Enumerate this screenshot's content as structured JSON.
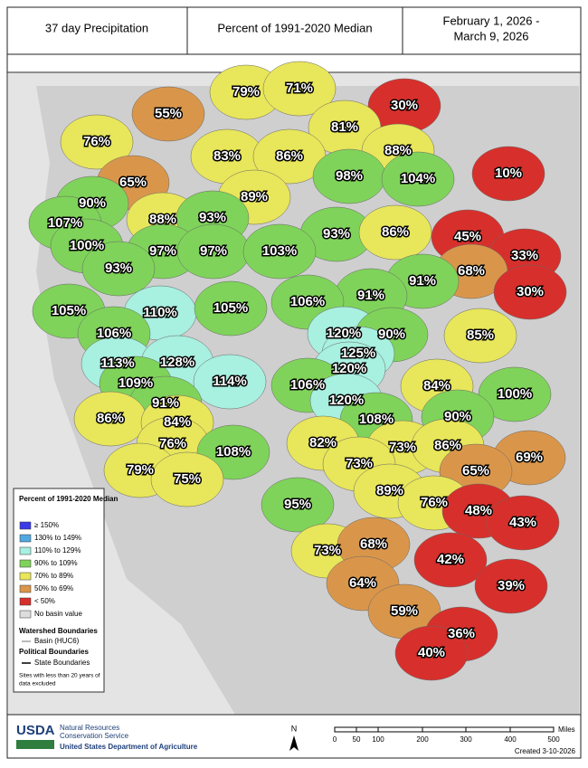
{
  "header": {
    "title": "37 day Precipitation",
    "subtitle": "Percent of 1991-2020 Median",
    "date_lines": [
      "February 1, 2026 -",
      "March 9, 2026"
    ]
  },
  "basins": [
    {
      "label": "30%",
      "color": "#d7302c"
    },
    {
      "label": "79%",
      "color": "#e8e65a"
    },
    {
      "label": "71%",
      "color": "#e8e65a"
    },
    {
      "label": "55%",
      "color": "#d9964b"
    },
    {
      "label": "81%",
      "color": "#e8e65a"
    },
    {
      "label": "76%",
      "color": "#e8e65a"
    },
    {
      "label": "88%",
      "color": "#e8e65a"
    },
    {
      "label": "83%",
      "color": "#e8e65a"
    },
    {
      "label": "86%",
      "color": "#e8e65a"
    },
    {
      "label": "10%",
      "color": "#d7302c"
    },
    {
      "label": "98%",
      "color": "#7fd35a"
    },
    {
      "label": "104%",
      "color": "#7fd35a"
    },
    {
      "label": "65%",
      "color": "#d9964b"
    },
    {
      "label": "90%",
      "color": "#7fd35a"
    },
    {
      "label": "89%",
      "color": "#e8e65a"
    },
    {
      "label": "107%",
      "color": "#7fd35a"
    },
    {
      "label": "88%",
      "color": "#e8e65a"
    },
    {
      "label": "93%",
      "color": "#7fd35a"
    },
    {
      "label": "93%",
      "color": "#7fd35a"
    },
    {
      "label": "86%",
      "color": "#e8e65a"
    },
    {
      "label": "45%",
      "color": "#d7302c"
    },
    {
      "label": "33%",
      "color": "#d7302c"
    },
    {
      "label": "100%",
      "color": "#7fd35a"
    },
    {
      "label": "97%",
      "color": "#7fd35a"
    },
    {
      "label": "97%",
      "color": "#7fd35a"
    },
    {
      "label": "103%",
      "color": "#7fd35a"
    },
    {
      "label": "68%",
      "color": "#d9964b"
    },
    {
      "label": "93%",
      "color": "#7fd35a"
    },
    {
      "label": "91%",
      "color": "#7fd35a"
    },
    {
      "label": "30%",
      "color": "#d7302c"
    },
    {
      "label": "91%",
      "color": "#7fd35a"
    },
    {
      "label": "106%",
      "color": "#7fd35a"
    },
    {
      "label": "105%",
      "color": "#7fd35a"
    },
    {
      "label": "110%",
      "color": "#a8f0e0"
    },
    {
      "label": "105%",
      "color": "#7fd35a"
    },
    {
      "label": "106%",
      "color": "#7fd35a"
    },
    {
      "label": "120%",
      "color": "#a8f0e0"
    },
    {
      "label": "90%",
      "color": "#7fd35a"
    },
    {
      "label": "85%",
      "color": "#e8e65a"
    },
    {
      "label": "125%",
      "color": "#a8f0e0"
    },
    {
      "label": "113%",
      "color": "#a8f0e0"
    },
    {
      "label": "128%",
      "color": "#a8f0e0"
    },
    {
      "label": "120%",
      "color": "#a8f0e0"
    },
    {
      "label": "109%",
      "color": "#7fd35a"
    },
    {
      "label": "114%",
      "color": "#a8f0e0"
    },
    {
      "label": "106%",
      "color": "#7fd35a"
    },
    {
      "label": "84%",
      "color": "#e8e65a"
    },
    {
      "label": "100%",
      "color": "#7fd35a"
    },
    {
      "label": "91%",
      "color": "#7fd35a"
    },
    {
      "label": "120%",
      "color": "#a8f0e0"
    },
    {
      "label": "86%",
      "color": "#e8e65a"
    },
    {
      "label": "84%",
      "color": "#e8e65a"
    },
    {
      "label": "108%",
      "color": "#7fd35a"
    },
    {
      "label": "90%",
      "color": "#7fd35a"
    },
    {
      "label": "82%",
      "color": "#e8e65a"
    },
    {
      "label": "73%",
      "color": "#e8e65a"
    },
    {
      "label": "86%",
      "color": "#e8e65a"
    },
    {
      "label": "69%",
      "color": "#d9964b"
    },
    {
      "label": "76%",
      "color": "#e8e65a"
    },
    {
      "label": "73%",
      "color": "#e8e65a"
    },
    {
      "label": "65%",
      "color": "#d9964b"
    },
    {
      "label": "108%",
      "color": "#7fd35a"
    },
    {
      "label": "79%",
      "color": "#e8e65a"
    },
    {
      "label": "75%",
      "color": "#e8e65a"
    },
    {
      "label": "89%",
      "color": "#e8e65a"
    },
    {
      "label": "95%",
      "color": "#7fd35a"
    },
    {
      "label": "76%",
      "color": "#e8e65a"
    },
    {
      "label": "48%",
      "color": "#d7302c"
    },
    {
      "label": "43%",
      "color": "#d7302c"
    },
    {
      "label": "73%",
      "color": "#e8e65a"
    },
    {
      "label": "68%",
      "color": "#d9964b"
    },
    {
      "label": "42%",
      "color": "#d7302c"
    },
    {
      "label": "64%",
      "color": "#d9964b"
    },
    {
      "label": "39%",
      "color": "#d7302c"
    },
    {
      "label": "59%",
      "color": "#d9964b"
    },
    {
      "label": "36%",
      "color": "#d7302c"
    },
    {
      "label": "40%",
      "color": "#d7302c"
    }
  ],
  "legend": {
    "title": "Percent of 1991-2020 Median",
    "items": [
      {
        "label": "≥ 150%",
        "color": "#3a3ae8"
      },
      {
        "label": "130% to 149%",
        "color": "#52a8e0"
      },
      {
        "label": "110% to 129%",
        "color": "#a8f0e0"
      },
      {
        "label": "90% to 109%",
        "color": "#7fd35a"
      },
      {
        "label": "70% to 89%",
        "color": "#e8e65a"
      },
      {
        "label": "50% to 69%",
        "color": "#d9964b"
      },
      {
        "label": "< 50%",
        "color": "#d7302c"
      },
      {
        "label": "No basin value",
        "color": "#dddddd"
      }
    ],
    "watershed_title": "Watershed Boundaries",
    "watershed_item": "Basin (HUC6)",
    "political_title": "Political Boundaries",
    "political_item": "State Boundaries",
    "note": [
      "Sites with less than 20 years of",
      "data excluded"
    ]
  },
  "footer": {
    "logo": "USDA",
    "agency": [
      "Natural Resources",
      "Conservation Service"
    ],
    "department": "United States Department of Agriculture",
    "north": "N",
    "scale": [
      "0",
      "50",
      "100",
      "200",
      "300",
      "400",
      "500"
    ],
    "scale_unit": "Miles",
    "created": "Created 3-10-2026"
  }
}
